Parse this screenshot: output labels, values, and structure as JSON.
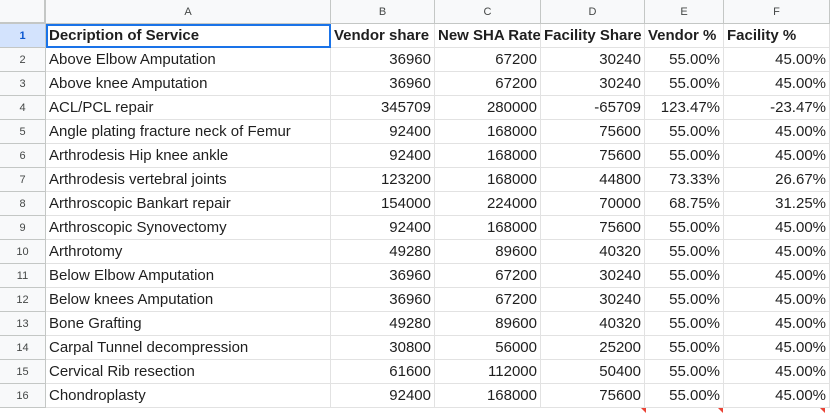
{
  "columns": [
    "A",
    "B",
    "C",
    "D",
    "E",
    "F"
  ],
  "rows": [
    {
      "num": "1",
      "cells": [
        "Decription of Service",
        "Vendor share",
        "New SHA Rate",
        "Facility Share",
        "Vendor %",
        "Facility %"
      ]
    },
    {
      "num": "2",
      "cells": [
        "Above Elbow Amputation",
        "36960",
        "67200",
        "30240",
        "55.00%",
        "45.00%"
      ]
    },
    {
      "num": "3",
      "cells": [
        "Above knee Amputation",
        "36960",
        "67200",
        "30240",
        "55.00%",
        "45.00%"
      ]
    },
    {
      "num": "4",
      "cells": [
        "ACL/PCL repair",
        "345709",
        "280000",
        "-65709",
        "123.47%",
        "-23.47%"
      ]
    },
    {
      "num": "5",
      "cells": [
        "Angle plating fracture neck of Femur",
        "92400",
        "168000",
        "75600",
        "55.00%",
        "45.00%"
      ]
    },
    {
      "num": "6",
      "cells": [
        "Arthrodesis Hip knee ankle",
        "92400",
        "168000",
        "75600",
        "55.00%",
        "45.00%"
      ]
    },
    {
      "num": "7",
      "cells": [
        "Arthrodesis vertebral joints",
        "123200",
        "168000",
        "44800",
        "73.33%",
        "26.67%"
      ]
    },
    {
      "num": "8",
      "cells": [
        "Arthroscopic Bankart repair",
        "154000",
        "224000",
        "70000",
        "68.75%",
        "31.25%"
      ]
    },
    {
      "num": "9",
      "cells": [
        "Arthroscopic Synovectomy",
        "92400",
        "168000",
        "75600",
        "55.00%",
        "45.00%"
      ]
    },
    {
      "num": "10",
      "cells": [
        "Arthrotomy",
        "49280",
        "89600",
        "40320",
        "55.00%",
        "45.00%"
      ]
    },
    {
      "num": "11",
      "cells": [
        "Below Elbow Amputation",
        "36960",
        "67200",
        "30240",
        "55.00%",
        "45.00%"
      ]
    },
    {
      "num": "12",
      "cells": [
        "Below knees Amputation",
        "36960",
        "67200",
        "30240",
        "55.00%",
        "45.00%"
      ]
    },
    {
      "num": "13",
      "cells": [
        "Bone Grafting",
        "49280",
        "89600",
        "40320",
        "55.00%",
        "45.00%"
      ]
    },
    {
      "num": "14",
      "cells": [
        "Carpal Tunnel decompression",
        "30800",
        "56000",
        "25200",
        "55.00%",
        "45.00%"
      ]
    },
    {
      "num": "15",
      "cells": [
        "Cervical Rib resection",
        "61600",
        "112000",
        "50400",
        "55.00%",
        "45.00%"
      ]
    },
    {
      "num": "16",
      "cells": [
        "Chondroplasty",
        "92400",
        "168000",
        "75600",
        "55.00%",
        "45.00%"
      ]
    }
  ]
}
